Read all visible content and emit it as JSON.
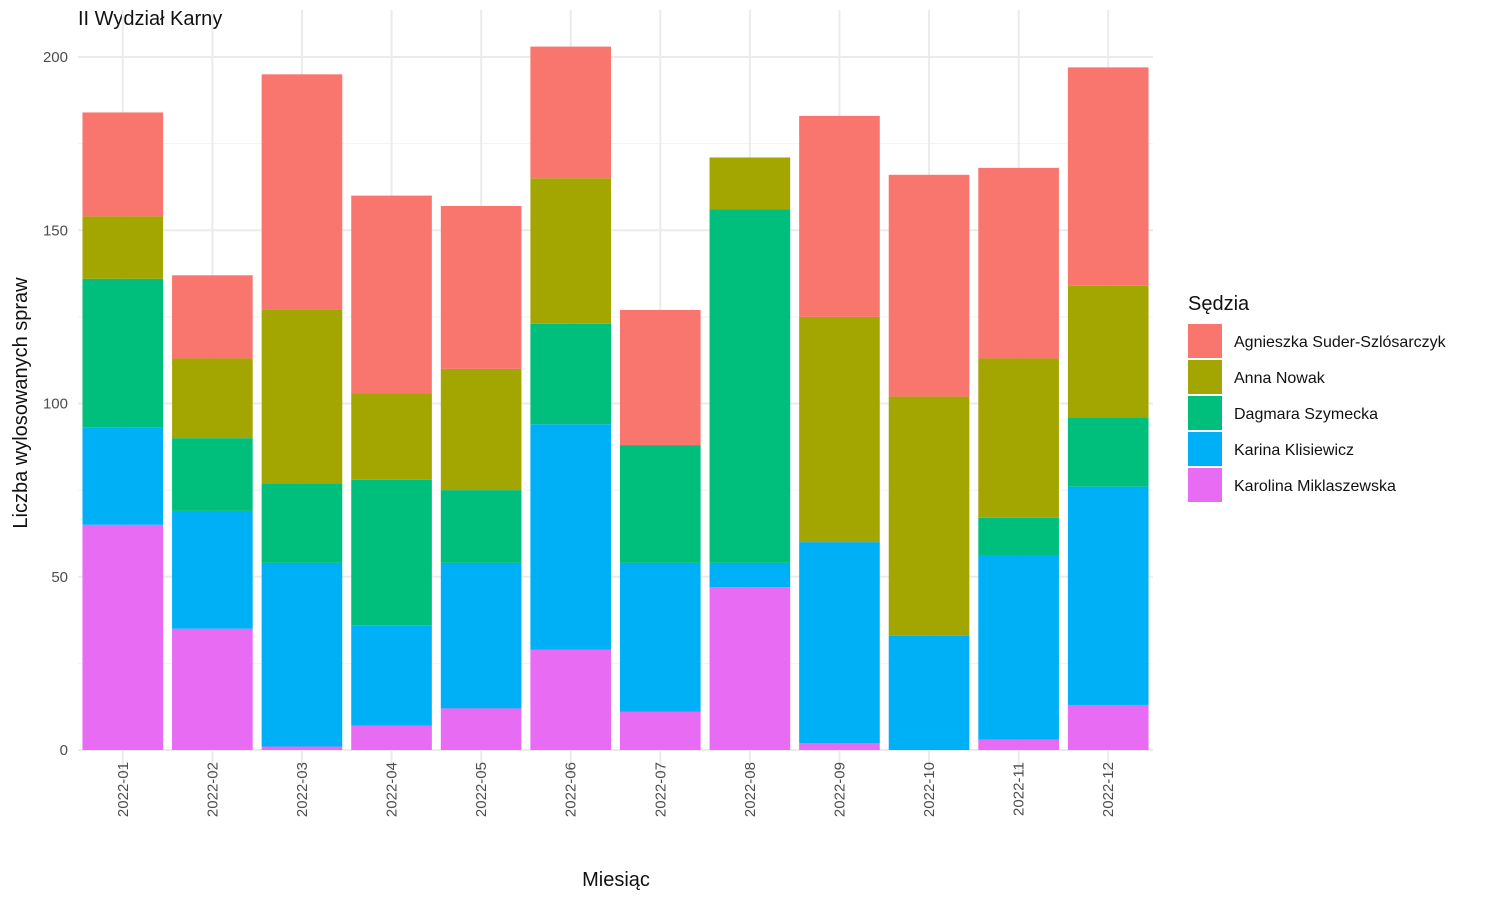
{
  "chart_data": {
    "type": "bar",
    "stacked": true,
    "title": "II Wydział Karny",
    "xlabel": "Miesiąc",
    "ylabel": "Liczba wylosowanych spraw",
    "ylim": [
      0,
      210
    ],
    "yticks": [
      0,
      50,
      100,
      150,
      200
    ],
    "grid": true,
    "legend_title": "Sędzia",
    "legend_position": "right",
    "categories": [
      "2022-01",
      "2022-02",
      "2022-03",
      "2022-04",
      "2022-05",
      "2022-06",
      "2022-07",
      "2022-08",
      "2022-09",
      "2022-10",
      "2022-11",
      "2022-12"
    ],
    "series": [
      {
        "name": "Karolina Miklaszewska",
        "color": "#E76BF3",
        "values": [
          65,
          35,
          1,
          7,
          12,
          29,
          11,
          47,
          2,
          0,
          3,
          13
        ]
      },
      {
        "name": "Karina Klisiewicz",
        "color": "#00B0F6",
        "values": [
          28,
          34,
          53,
          29,
          42,
          65,
          43,
          7,
          58,
          33,
          53,
          63
        ]
      },
      {
        "name": "Dagmara Szymecka",
        "color": "#00BF7D",
        "values": [
          43,
          21,
          23,
          42,
          21,
          29,
          34,
          102,
          0,
          0,
          11,
          20
        ]
      },
      {
        "name": "Anna Nowak",
        "color": "#A3A500",
        "values": [
          18,
          23,
          50,
          25,
          35,
          42,
          0,
          15,
          65,
          69,
          46,
          38
        ]
      },
      {
        "name": "Agnieszka Suder-Szlósarczyk",
        "color": "#F8766D",
        "values": [
          30,
          24,
          68,
          57,
          47,
          38,
          39,
          0,
          58,
          64,
          55,
          63
        ]
      }
    ]
  }
}
